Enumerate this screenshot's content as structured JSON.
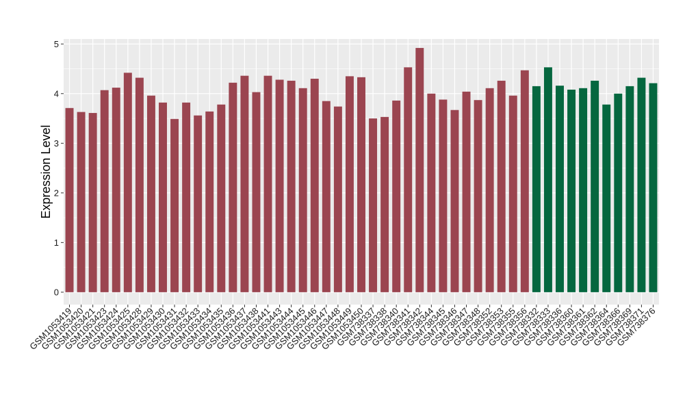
{
  "chart_data": {
    "type": "bar",
    "title": "",
    "xlabel": "",
    "ylabel": "Expression Level",
    "ylim": [
      -0.25,
      5.1
    ],
    "yticks": [
      0,
      1,
      2,
      3,
      4,
      5
    ],
    "grid": true,
    "categories": [
      "GSM1053419",
      "GSM1053420",
      "GSM1053421",
      "GSM1053423",
      "GSM1053424",
      "GSM1053425",
      "GSM1053428",
      "GSM1053429",
      "GSM1053430",
      "GSM1053431",
      "GSM1053432",
      "GSM1053433",
      "GSM1053434",
      "GSM1053435",
      "GSM1053436",
      "GSM1053437",
      "GSM1053438",
      "GSM1053441",
      "GSM1053443",
      "GSM1053444",
      "GSM1053445",
      "GSM1053446",
      "GSM1053447",
      "GSM1053448",
      "GSM1053449",
      "GSM1053450",
      "GSM738337",
      "GSM738338",
      "GSM738340",
      "GSM738341",
      "GSM738342",
      "GSM738344",
      "GSM738345",
      "GSM738346",
      "GSM738347",
      "GSM738348",
      "GSM738352",
      "GSM738353",
      "GSM738355",
      "GSM738356",
      "GSM738332",
      "GSM738333",
      "GSM738336",
      "GSM738360",
      "GSM738361",
      "GSM738362",
      "GSM738364",
      "GSM738366",
      "GSM738369",
      "GSM738371",
      "GSM738376"
    ],
    "values": [
      3.71,
      3.63,
      3.61,
      4.07,
      4.12,
      4.42,
      4.32,
      3.96,
      3.82,
      3.49,
      3.82,
      3.56,
      3.64,
      3.78,
      4.22,
      4.36,
      4.03,
      4.36,
      4.28,
      4.26,
      4.11,
      4.3,
      3.85,
      3.74,
      4.35,
      4.33,
      3.5,
      3.53,
      3.86,
      4.53,
      4.92,
      4.0,
      3.88,
      3.67,
      4.04,
      3.87,
      4.11,
      4.26,
      3.96,
      4.47,
      4.15,
      4.53,
      4.16,
      4.08,
      4.11,
      4.26,
      3.78,
      4.0,
      4.15,
      4.32,
      4.21
    ],
    "groups": [
      {
        "color": "#9b4550",
        "count": 40
      },
      {
        "color": "#05673f",
        "count": 11
      }
    ],
    "panel_background": "#ebebeb",
    "grid_color": "#ffffff"
  }
}
